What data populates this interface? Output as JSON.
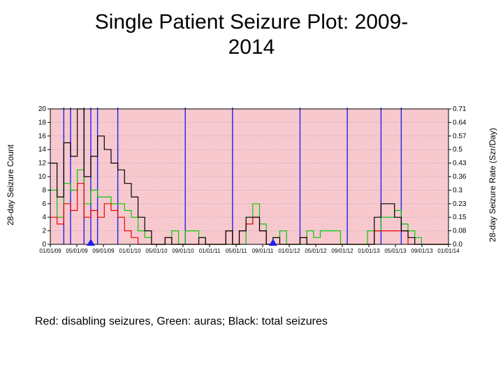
{
  "title": "Single Patient Seizure Plot: 2009-\n2014",
  "caption": "Red: disabling seizures, Green: auras; Black: total seizures",
  "chart": {
    "type": "line",
    "background_color": "#f7c9cf",
    "grid_color": "#9aa0a6",
    "axis_color": "#000000",
    "vline_color": "#2020ee",
    "marker_triangle_color": "#2020ee",
    "y_left": {
      "label": "28-day Seizure Count",
      "min": 0,
      "max": 20,
      "step": 2,
      "ticks": [
        0,
        2,
        4,
        6,
        8,
        10,
        12,
        14,
        16,
        18,
        20
      ]
    },
    "y_right": {
      "label": "28-day Seizure Rate (Szr/Day)",
      "ticks": [
        0.0,
        0.08,
        0.15,
        0.23,
        0.3,
        0.36,
        0.43,
        0.5,
        0.57,
        0.64,
        0.71
      ]
    },
    "x": {
      "labels": [
        "01/01/09",
        "05/01/09",
        "09/01/09",
        "01/01/10",
        "05/01/10",
        "09/01/10",
        "01/01/11",
        "05/01/11",
        "09/01/11",
        "01/01/12",
        "05/01/12",
        "09/01/12",
        "01/01/13",
        "05/01/13",
        "09/01/13",
        "01/01/14"
      ],
      "label_fontsize": 8
    },
    "series": {
      "black": {
        "color": "#000000",
        "data": [
          12,
          7,
          15,
          13,
          20,
          10,
          13,
          16,
          14,
          12,
          11,
          9,
          7,
          4,
          2,
          0,
          0,
          1,
          0,
          0,
          0,
          0,
          1,
          0,
          0,
          0,
          2,
          0,
          2,
          4,
          4,
          2,
          0,
          1,
          0,
          0,
          0,
          1,
          0,
          0,
          0,
          0,
          0,
          0,
          0,
          0,
          0,
          0,
          4,
          6,
          6,
          4,
          2,
          1,
          0,
          0,
          0,
          0,
          0,
          0
        ]
      },
      "red": {
        "color": "#ee0000",
        "data": [
          4,
          3,
          6,
          5,
          9,
          4,
          5,
          4,
          6,
          5,
          4,
          2,
          1,
          0,
          0,
          0,
          0,
          1,
          0,
          0,
          0,
          0,
          0,
          0,
          0,
          0,
          2,
          0,
          2,
          3,
          4,
          2,
          0,
          0,
          0,
          0,
          0,
          1,
          0,
          0,
          0,
          0,
          0,
          0,
          0,
          0,
          0,
          0,
          2,
          2,
          2,
          2,
          2,
          0,
          0,
          0,
          0,
          0,
          0,
          0
        ]
      },
      "green": {
        "color": "#00cc00",
        "data": [
          8,
          4,
          9,
          8,
          11,
          6,
          8,
          7,
          7,
          6,
          6,
          5,
          4,
          2,
          1,
          0,
          0,
          0,
          2,
          0,
          2,
          2,
          1,
          0,
          0,
          0,
          0,
          0,
          0,
          3,
          6,
          3,
          0,
          1,
          2,
          0,
          0,
          0,
          2,
          1,
          2,
          2,
          2,
          0,
          0,
          0,
          0,
          2,
          2,
          4,
          4,
          5,
          3,
          2,
          1,
          0,
          0,
          0,
          0,
          0
        ]
      }
    },
    "vlines_idx": [
      2,
      3,
      5,
      6,
      7,
      10,
      20,
      27,
      37,
      44,
      49,
      52
    ],
    "triangles_idx": [
      6,
      33
    ],
    "tick_fontsize": 10,
    "axis_label_fontsize": 12,
    "line_width": 1.2,
    "step_style": "pre"
  }
}
